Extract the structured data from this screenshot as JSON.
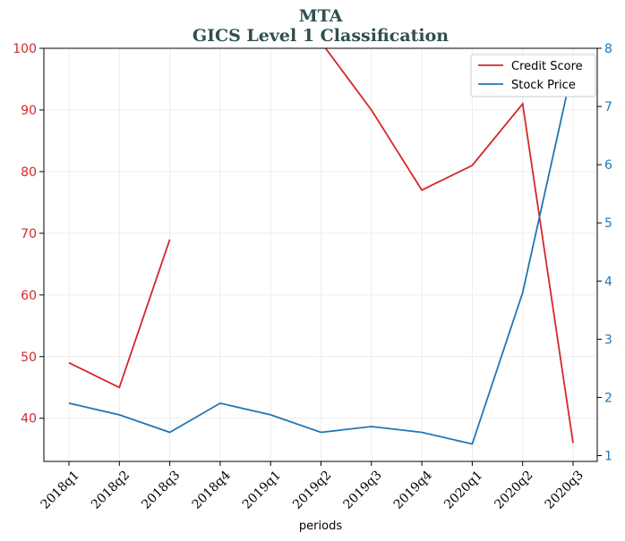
{
  "chart_data": {
    "type": "line",
    "title": "MTA",
    "subtitle": "GICS Level 1 Classification",
    "xlabel": "periods",
    "categories": [
      "2018q1",
      "2018q2",
      "2018q3",
      "2018q4",
      "2019q1",
      "2019q2",
      "2019q3",
      "2019q4",
      "2020q1",
      "2020q2",
      "2020q3"
    ],
    "y_left": {
      "ylim": [
        33,
        100
      ],
      "ticks": [
        40,
        50,
        60,
        70,
        80,
        90,
        100
      ],
      "color": "#d62728"
    },
    "y_right": {
      "ylim": [
        0.9,
        8.0
      ],
      "ticks": [
        1,
        2,
        3,
        4,
        5,
        6,
        7,
        8
      ],
      "color": "#1f77b4"
    },
    "series": [
      {
        "name": "Credit Score",
        "axis": "left",
        "color": "#d62728",
        "values": [
          49,
          45,
          69,
          null,
          null,
          101,
          90,
          77,
          81,
          91,
          36
        ]
      },
      {
        "name": "Stock Price",
        "axis": "right",
        "color": "#1f77b4",
        "values": [
          1.9,
          1.7,
          1.4,
          1.9,
          1.7,
          1.4,
          1.5,
          1.4,
          1.2,
          3.8,
          7.7
        ]
      }
    ],
    "legend": "top-right",
    "grid": true
  }
}
